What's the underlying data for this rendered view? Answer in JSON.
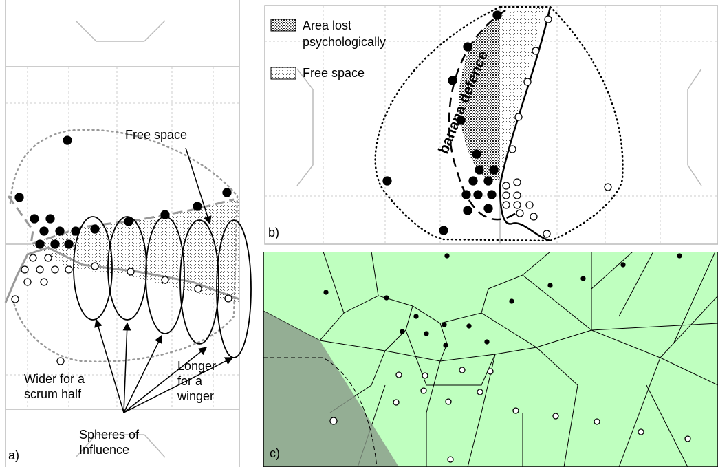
{
  "panel_a": {
    "label": "a)",
    "free_space": "Free space",
    "wider": [
      "Wider for a",
      "scrum half"
    ],
    "longer": [
      "Longer",
      "for a",
      "winger"
    ],
    "spheres": [
      "Spheres of",
      "Influence"
    ]
  },
  "panel_b": {
    "label": "b)",
    "legend": [
      [
        "Area lost",
        "psychologically"
      ],
      [
        "Free space"
      ]
    ],
    "banana": "banana defence"
  },
  "panel_c": {
    "label": "c)"
  }
}
